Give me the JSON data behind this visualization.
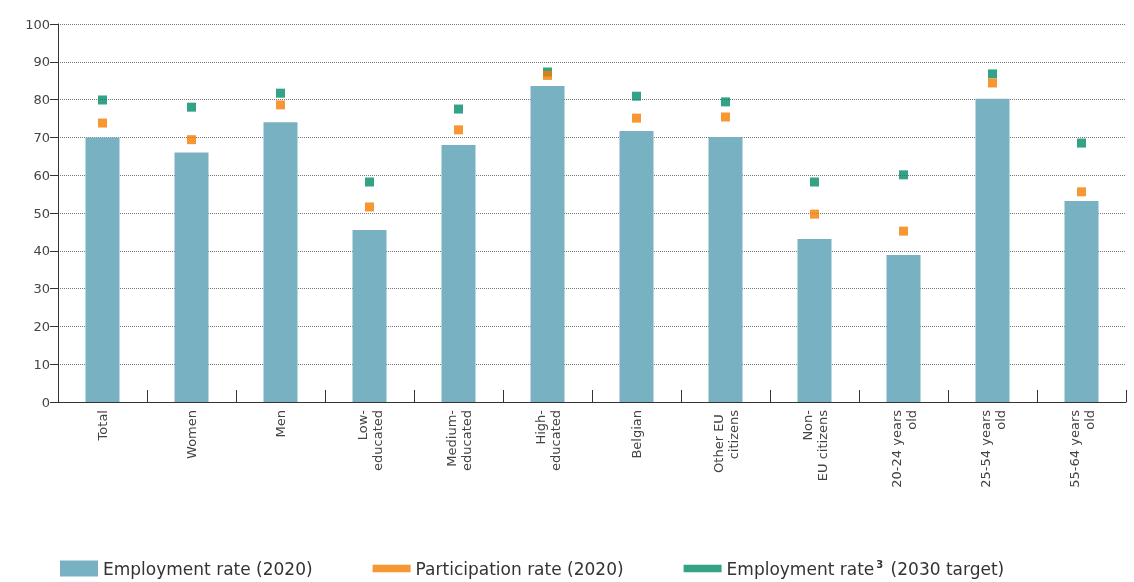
{
  "chart_data": {
    "type": "bar",
    "categories": [
      "Total",
      "Women",
      "Men",
      "Low-educated",
      "Medium-educated",
      "High-educated",
      "Belgian",
      "Other EU citizens",
      "Non-EU citizens",
      "20-24 years old",
      "25-54 years old",
      "55-64 years old"
    ],
    "series": [
      {
        "name": "Employment rate (2020)",
        "type": "bar",
        "color": "#78b2c2",
        "values": [
          70,
          66,
          74,
          45.5,
          68,
          83.6,
          71.7,
          70.1,
          43.1,
          38.9,
          80.2,
          53.2
        ]
      },
      {
        "name": "Participation rate (2020)",
        "type": "scatter",
        "marker": "square",
        "color": "#f47d00",
        "x": [
          "Total",
          "Women",
          "Men",
          "Low-educated",
          "Medium-educated",
          "High-educated",
          "Belgian",
          "Other EU citizens",
          "Non-EU citizens",
          "20-24 years old",
          "25-54 years old",
          "55-64 years old"
        ],
        "values": [
          73.8,
          69.4,
          78.6,
          51.6,
          72,
          86.4,
          75.1,
          75.4,
          49.7,
          45.2,
          84.4,
          55.6
        ]
      },
      {
        "name": "Employment rate$^{3}$ (2030 target)",
        "type": "scatter",
        "marker": "square",
        "color": "#008b68",
        "x": [
          "Total",
          "Women",
          "Men",
          "Low-educated",
          "Medium-educated",
          "High-educated",
          "Belgian",
          "Other EU citizens",
          "Non-EU citizens",
          "20-24 years old",
          "25-54 years old",
          "55-64 years old"
        ],
        "values": [
          79.9,
          78,
          81.7,
          58.2,
          77.5,
          87.3,
          80.9,
          79.4,
          58.2,
          60.1,
          86.8,
          68.5
        ]
      }
    ],
    "ylim": [
      0,
      100
    ],
    "yticks": [
      0,
      10,
      20,
      30,
      40,
      50,
      60,
      70,
      80,
      90,
      100
    ],
    "grid": "y",
    "legend": "bottom"
  }
}
